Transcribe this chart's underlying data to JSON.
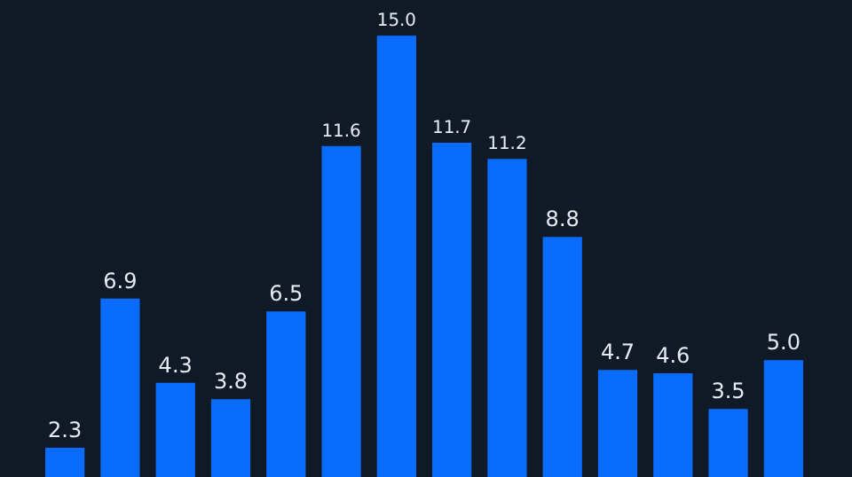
{
  "chart_data": {
    "type": "bar",
    "categories": [
      null,
      null,
      null,
      null,
      null,
      null,
      null,
      null,
      null,
      null,
      null,
      null,
      null,
      null
    ],
    "values": [
      2.3,
      6.9,
      4.3,
      3.8,
      6.5,
      11.6,
      15.0,
      11.7,
      11.2,
      8.8,
      4.7,
      4.6,
      3.5,
      5.0
    ],
    "value_labels": [
      "2.3",
      "6.9",
      "4.3",
      "3.8",
      "6.5",
      "11.6",
      "15.0",
      "11.7",
      "11.2",
      "8.8",
      "4.7",
      "4.6",
      "3.5",
      "5.0"
    ],
    "color": "#0a6cff",
    "ylim": [
      1.4,
      16.1
    ]
  }
}
